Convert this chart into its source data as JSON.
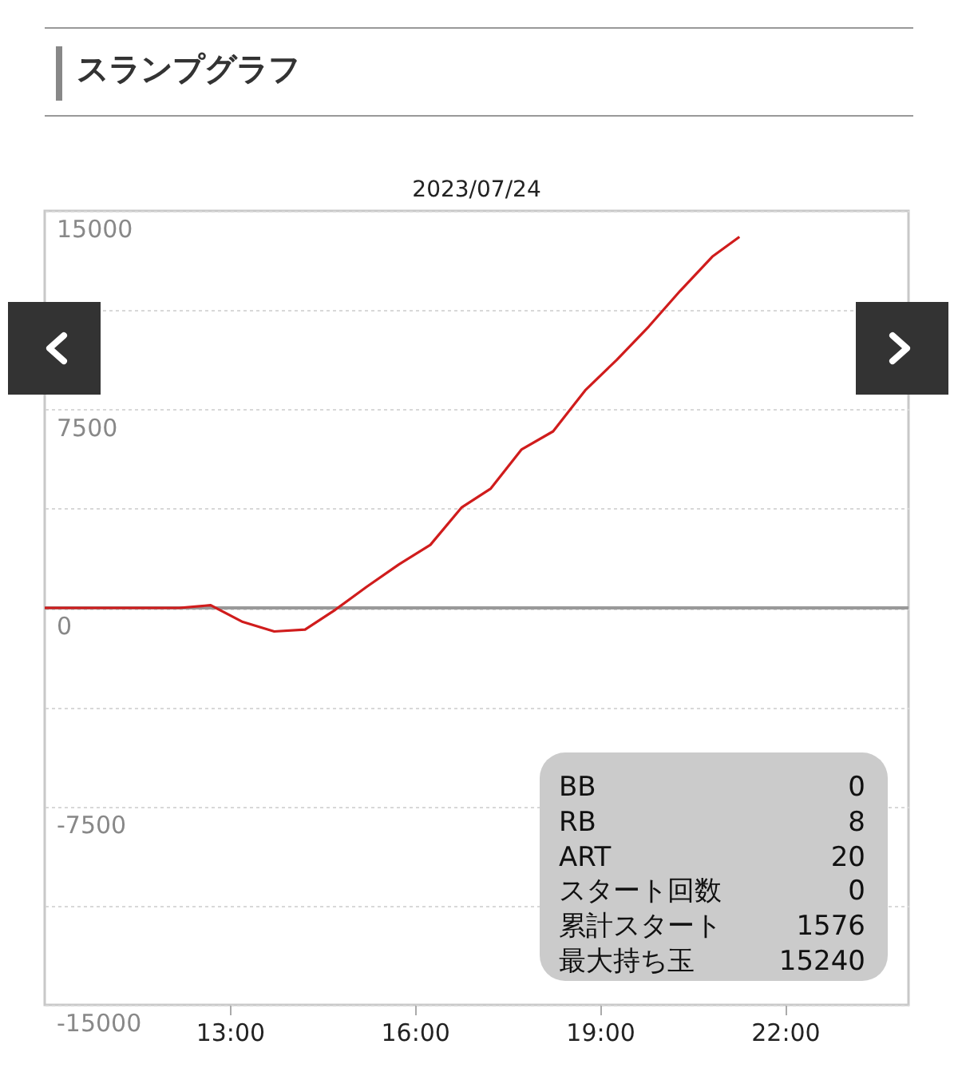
{
  "chart_data": {
    "type": "line",
    "title": "スランプグラフ",
    "subtitle": "2023/07/24",
    "x": [
      10,
      12.18,
      12.69,
      13.21,
      13.72,
      14.22,
      14.71,
      15.22,
      15.74,
      16.25,
      16.76,
      17.23,
      17.73,
      18.24,
      18.76,
      19.27,
      19.79,
      20.3,
      20.82,
      21.26
    ],
    "series": [
      {
        "color": "#d01c1c",
        "values": [
          0,
          0,
          100,
          -530,
          -890,
          -820,
          -70,
          800,
          1640,
          2380,
          3800,
          4510,
          5990,
          6670,
          8220,
          9370,
          10630,
          11980,
          13270,
          14020
        ]
      }
    ],
    "xlim": [
      10,
      24
    ],
    "xticks": [
      {
        "value": 13,
        "label": "13:00"
      },
      {
        "value": 16,
        "label": "16:00"
      },
      {
        "value": 19,
        "label": "19:00"
      },
      {
        "value": 22,
        "label": "22:00"
      }
    ],
    "ylim": [
      -15000,
      15000
    ],
    "yticks": [
      -15000,
      {
        "value": -11250,
        "label": null
      },
      -7500,
      {
        "value": -3750,
        "label": null
      },
      0,
      {
        "value": 3750,
        "label": null
      },
      7500,
      {
        "value": 11250,
        "label": null
      },
      15000
    ],
    "grid": "y",
    "marker": "none",
    "line_style": "solid",
    "ref_lines": [
      {
        "axis": "y",
        "value": 0,
        "color": "#999999"
      }
    ],
    "annotations": [
      "BB",
      "0",
      "RB",
      "8",
      "ART",
      "20",
      "スタート回数",
      "0",
      "累計スタート",
      "1576",
      "最大持ち玉",
      "15240"
    ]
  }
}
